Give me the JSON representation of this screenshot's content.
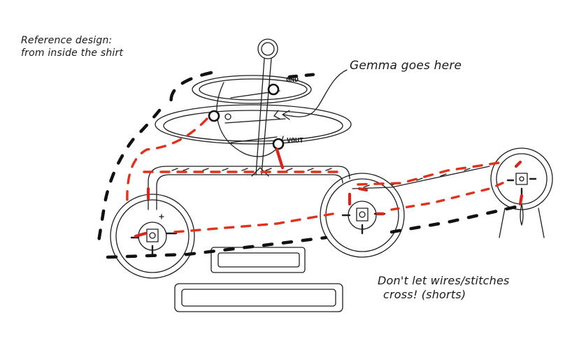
{
  "notes": {
    "reference_line1": "Reference design:",
    "reference_line2": "from inside the shirt",
    "gemma": "Gemma goes here",
    "warning_line1": "Don't let wires/stitches",
    "warning_line2": "cross! (shorts)"
  },
  "pins": {
    "gnd": "GND",
    "vout": "VOUT"
  },
  "colors": {
    "ink": "#1d1d1d",
    "ground_stitch": "#111111",
    "power_stitch": "#e3301d"
  }
}
